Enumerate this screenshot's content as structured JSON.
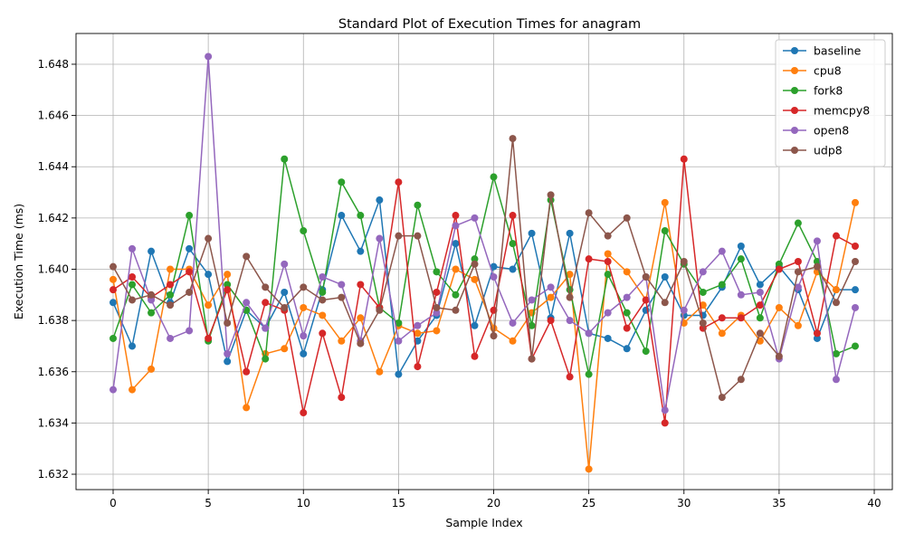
{
  "chart_data": {
    "type": "line",
    "title": "Standard Plot of Execution Times for anagram",
    "xlabel": "Sample Index",
    "ylabel": "Execution Time (ms)",
    "xlim": [
      -1.95,
      40.95
    ],
    "ylim": [
      1.6314,
      1.6492
    ],
    "xticks": [
      0,
      5,
      10,
      15,
      20,
      25,
      30,
      35,
      40
    ],
    "yticks": [
      1.632,
      1.634,
      1.636,
      1.638,
      1.64,
      1.642,
      1.644,
      1.646,
      1.648
    ],
    "ytick_decimals": 3,
    "grid": true,
    "legend_position": "top-right",
    "x": [
      0,
      1,
      2,
      3,
      4,
      5,
      6,
      7,
      8,
      9,
      10,
      11,
      12,
      13,
      14,
      15,
      16,
      17,
      18,
      19,
      20,
      21,
      22,
      23,
      24,
      25,
      26,
      27,
      28,
      29,
      30,
      31,
      32,
      33,
      34,
      35,
      36,
      37,
      38,
      39
    ],
    "series": [
      {
        "name": "baseline",
        "color": "#1f77b4",
        "values": [
          1.6387,
          1.637,
          1.6407,
          1.6387,
          1.6408,
          1.6398,
          1.6364,
          1.6384,
          1.6377,
          1.6391,
          1.6367,
          1.6392,
          1.6421,
          1.6407,
          1.6427,
          1.6359,
          1.6372,
          1.6382,
          1.641,
          1.6378,
          1.6401,
          1.64,
          1.6414,
          1.6381,
          1.6414,
          1.6375,
          1.6373,
          1.6369,
          1.6384,
          1.6397,
          1.6382,
          1.6382,
          1.6393,
          1.6409,
          1.6394,
          1.6401,
          1.6392,
          1.6373,
          1.6392,
          1.6392
        ]
      },
      {
        "name": "cpu8",
        "color": "#ff7f0e",
        "values": [
          1.6396,
          1.6353,
          1.6361,
          1.64,
          1.64,
          1.6386,
          1.6398,
          1.6346,
          1.6367,
          1.6369,
          1.6385,
          1.6382,
          1.6372,
          1.6381,
          1.636,
          1.6378,
          1.6375,
          1.6376,
          1.64,
          1.6396,
          1.6377,
          1.6372,
          1.6383,
          1.6389,
          1.6398,
          1.6322,
          1.6406,
          1.6399,
          1.6388,
          1.6426,
          1.6379,
          1.6386,
          1.6375,
          1.6382,
          1.6372,
          1.6385,
          1.6378,
          1.6399,
          1.6392,
          1.6426
        ]
      },
      {
        "name": "fork8",
        "color": "#2ca02c",
        "values": [
          1.6373,
          1.6394,
          1.6383,
          1.639,
          1.6421,
          1.6372,
          1.6394,
          1.6384,
          1.6365,
          1.6443,
          1.6415,
          1.6391,
          1.6434,
          1.6421,
          1.6385,
          1.6379,
          1.6425,
          1.6399,
          1.639,
          1.6404,
          1.6436,
          1.641,
          1.6378,
          1.6427,
          1.6392,
          1.6359,
          1.6398,
          1.6383,
          1.6368,
          1.6415,
          1.6402,
          1.6391,
          1.6394,
          1.6404,
          1.6381,
          1.6402,
          1.6418,
          1.6403,
          1.6367,
          1.637
        ]
      },
      {
        "name": "memcpy8",
        "color": "#d62728",
        "values": [
          1.6392,
          1.6397,
          1.6389,
          1.6394,
          1.6399,
          1.6373,
          1.6392,
          1.636,
          1.6387,
          1.6384,
          1.6344,
          1.6375,
          1.635,
          1.6394,
          1.6385,
          1.6434,
          1.6362,
          1.6391,
          1.6421,
          1.6366,
          1.6384,
          1.6421,
          1.6365,
          1.638,
          1.6358,
          1.6404,
          1.6403,
          1.6377,
          1.6388,
          1.634,
          1.6443,
          1.6377,
          1.6381,
          1.6381,
          1.6386,
          1.64,
          1.6403,
          1.6375,
          1.6413,
          1.6409
        ]
      },
      {
        "name": "open8",
        "color": "#9467bd",
        "values": [
          1.6353,
          1.6408,
          1.6388,
          1.6373,
          1.6376,
          1.6483,
          1.6367,
          1.6387,
          1.6377,
          1.6402,
          1.6374,
          1.6397,
          1.6394,
          1.6372,
          1.6412,
          1.6372,
          1.6378,
          1.6383,
          1.6417,
          1.642,
          1.6397,
          1.6379,
          1.6388,
          1.6393,
          1.638,
          1.6375,
          1.6383,
          1.6389,
          1.6397,
          1.6345,
          1.6384,
          1.6399,
          1.6407,
          1.639,
          1.6391,
          1.6365,
          1.6393,
          1.6411,
          1.6357,
          1.6385
        ]
      },
      {
        "name": "udp8",
        "color": "#8c564b",
        "values": [
          1.6401,
          1.6388,
          1.639,
          1.6386,
          1.6391,
          1.6412,
          1.6379,
          1.6405,
          1.6393,
          1.6385,
          1.6393,
          1.6388,
          1.6389,
          1.6371,
          1.6384,
          1.6413,
          1.6413,
          1.6385,
          1.6384,
          1.6402,
          1.6374,
          1.6451,
          1.6365,
          1.6429,
          1.6389,
          1.6422,
          1.6413,
          1.642,
          1.6397,
          1.6387,
          1.6403,
          1.6379,
          1.635,
          1.6357,
          1.6375,
          1.6366,
          1.6399,
          1.6401,
          1.6387,
          1.6403
        ]
      }
    ]
  }
}
